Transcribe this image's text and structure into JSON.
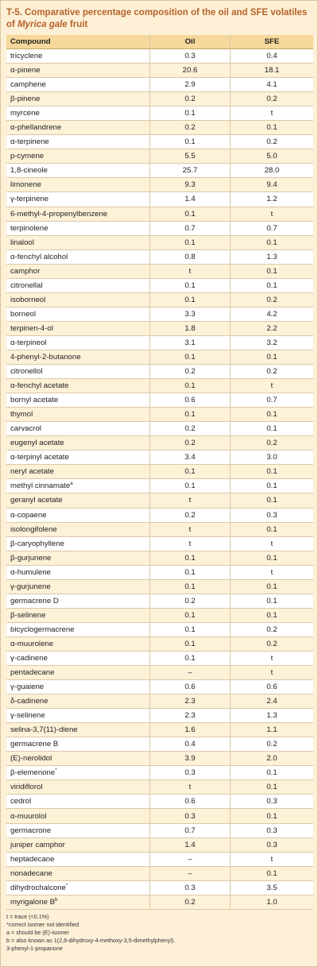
{
  "title": {
    "prefix": "T-5. Comparative percentage composition of the oil and SFE volatiles of ",
    "italic": "Myrica gale",
    "suffix": " fruit"
  },
  "table": {
    "headers": [
      "Compound",
      "Oil",
      "SFE"
    ],
    "rows": [
      {
        "name": "tricyclene",
        "oil": "0.3",
        "sfe": "0.4"
      },
      {
        "name": "α-pinene",
        "oil": "20.6",
        "sfe": "18.1"
      },
      {
        "name": "camphene",
        "oil": "2.9",
        "sfe": "4.1"
      },
      {
        "name": "β-pinene",
        "oil": "0.2",
        "sfe": "0.2"
      },
      {
        "name": "myrcene",
        "oil": "0.1",
        "sfe": "t"
      },
      {
        "name": "α-phellandrene",
        "oil": "0.2",
        "sfe": "0.1"
      },
      {
        "name": "α-terpinene",
        "oil": "0.1",
        "sfe": "0.2"
      },
      {
        "name": "p-cymene",
        "oil": "5.5",
        "sfe": "5.0"
      },
      {
        "name": "1,8-cineole",
        "oil": "25.7",
        "sfe": "28.0"
      },
      {
        "name": "limonene",
        "oil": "9.3",
        "sfe": "9.4"
      },
      {
        "name": "γ-terpinene",
        "oil": "1.4",
        "sfe": "1.2"
      },
      {
        "name": "6-methyl-4-propenylbenzene",
        "oil": "0.1",
        "sfe": "t"
      },
      {
        "name": "terpinolene",
        "oil": "0.7",
        "sfe": "0.7"
      },
      {
        "name": "linalool",
        "oil": "0.1",
        "sfe": "0.1"
      },
      {
        "name": "α-fenchyl alcohol",
        "oil": "0.8",
        "sfe": "1.3"
      },
      {
        "name": "camphor",
        "oil": "t",
        "sfe": "0.1"
      },
      {
        "name": "citronellal",
        "oil": "0.1",
        "sfe": "0.1"
      },
      {
        "name": "isoborneol",
        "oil": "0.1",
        "sfe": "0.2"
      },
      {
        "name": "borneol",
        "oil": "3.3",
        "sfe": "4.2"
      },
      {
        "name": "terpinen-4-ol",
        "oil": "1.8",
        "sfe": "2.2"
      },
      {
        "name": "α-terpineol",
        "oil": "3.1",
        "sfe": "3.2"
      },
      {
        "name": "4-phenyl-2-butanone",
        "oil": "0.1",
        "sfe": "0.1"
      },
      {
        "name": "citronellol",
        "oil": "0.2",
        "sfe": "0.2"
      },
      {
        "name": "α-fenchyl acetate",
        "oil": "0.1",
        "sfe": "t"
      },
      {
        "name": "bornyl acetate",
        "oil": "0.6",
        "sfe": "0.7"
      },
      {
        "name": "thymol",
        "oil": "0.1",
        "sfe": "0.1"
      },
      {
        "name": "carvacrol",
        "oil": "0.2",
        "sfe": "0.1"
      },
      {
        "name": "eugenyl acetate",
        "oil": "0.2",
        "sfe": "0.2"
      },
      {
        "name": "α-terpinyl acetate",
        "oil": "3.4",
        "sfe": "3.0"
      },
      {
        "name": "neryl acetate",
        "oil": "0.1",
        "sfe": "0.1"
      },
      {
        "name": "methyl cinnamate",
        "sup": "a",
        "oil": "0.1",
        "sfe": "0.1"
      },
      {
        "name": "geranyl acetate",
        "oil": "t",
        "sfe": "0.1"
      },
      {
        "name": "α-copaene",
        "oil": "0.2",
        "sfe": "0.3"
      },
      {
        "name": "isolongifolene",
        "oil": "t",
        "sfe": "0.1"
      },
      {
        "name": "β-caryophyllene",
        "oil": "t",
        "sfe": "t"
      },
      {
        "name": "β-gurjunene",
        "oil": "0.1",
        "sfe": "0.1"
      },
      {
        "name": "α-humulene",
        "oil": "0.1",
        "sfe": "t"
      },
      {
        "name": "γ-gurjunene",
        "oil": "0.1",
        "sfe": "0.1"
      },
      {
        "name": "germacrene D",
        "oil": "0.2",
        "sfe": "0.1"
      },
      {
        "name": "β-selinene",
        "oil": "0.1",
        "sfe": "0.1"
      },
      {
        "name": "bicyclogermacrene",
        "oil": "0.1",
        "sfe": "0.2"
      },
      {
        "name": "α-muurolene",
        "oil": "0.1",
        "sfe": "0.2"
      },
      {
        "name": "γ-cadinene",
        "oil": "0.1",
        "sfe": "t"
      },
      {
        "name": "pentadecane",
        "oil": "–",
        "sfe": "t"
      },
      {
        "name": "γ-guaiene",
        "oil": "0.6",
        "sfe": "0.6"
      },
      {
        "name": "δ-cadinene",
        "oil": "2.3",
        "sfe": "2.4"
      },
      {
        "name": "γ-selinene",
        "oil": "2.3",
        "sfe": "1.3"
      },
      {
        "name": "selina-3,7(11)-diene",
        "oil": "1.6",
        "sfe": "1.1"
      },
      {
        "name": "germacrene B",
        "oil": "0.4",
        "sfe": "0.2"
      },
      {
        "name": "(E)-nerolidol",
        "oil": "3.9",
        "sfe": "2.0"
      },
      {
        "name": "β-elemenone",
        "sup": "*",
        "oil": "0.3",
        "sfe": "0.1"
      },
      {
        "name": "viridiflorol",
        "oil": "t",
        "sfe": "0.1"
      },
      {
        "name": "cedrol",
        "oil": "0.6",
        "sfe": "0.3"
      },
      {
        "name": "α-muurolol",
        "oil": "0.3",
        "sfe": "0.1"
      },
      {
        "name": "germacrone",
        "oil": "0.7",
        "sfe": "0.3"
      },
      {
        "name": "juniper camphor",
        "oil": "1.4",
        "sfe": "0.3"
      },
      {
        "name": "heptadecane",
        "oil": "–",
        "sfe": "t"
      },
      {
        "name": "nonadecane",
        "oil": "–",
        "sfe": "0.1"
      },
      {
        "name": "dihydrochalcone",
        "sup": "*",
        "oil": "0.3",
        "sfe": "3.5"
      },
      {
        "name": "myrigalone B",
        "sup": "b",
        "oil": "0.2",
        "sfe": "1.0"
      }
    ]
  },
  "notes": [
    "t = trace (<0.1%)",
    "*correct isomer not identified",
    "a = should be (E)-isomer",
    "b = also known as 1(2,6-dihydroxy-4-methoxy-3,5-dimethylphenyl).",
    "3-phenyl-1-propanone"
  ]
}
